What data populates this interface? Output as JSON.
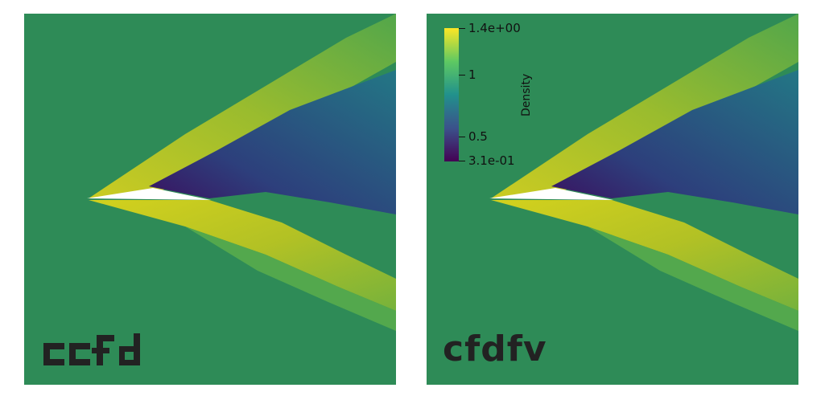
{
  "colors": {
    "background_field": "#2e8b57",
    "high": "#d7d51b",
    "mid_high": "#9ebb2a",
    "low": "#2a5a8a",
    "lowest": "#3b0c5c",
    "body": "#ffffff"
  },
  "panels": [
    {
      "name": "left",
      "logo_text": "ccfd"
    },
    {
      "name": "right",
      "logo_text": "cfdfv"
    }
  ],
  "colorbar": {
    "title": "Density",
    "max_label": "1.4e+00",
    "tick_1": "1",
    "tick_05": "0.5",
    "min_label": "3.1e-01",
    "colors": [
      "#440154",
      "#3b528b",
      "#21918c",
      "#5ec962",
      "#fde725"
    ]
  }
}
